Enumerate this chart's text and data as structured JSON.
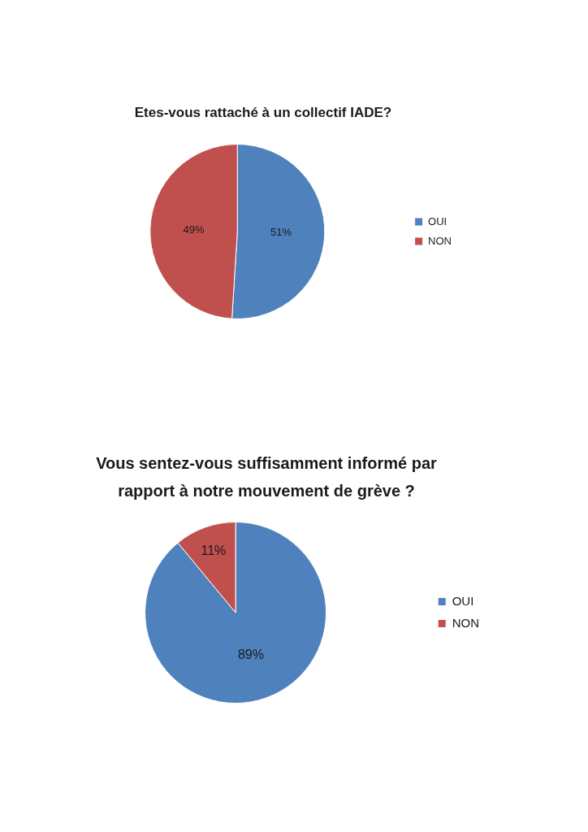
{
  "chart_data": [
    {
      "type": "pie",
      "title": "Etes-vous rattaché à un collectif IADE?",
      "categories": [
        "OUI",
        "NON"
      ],
      "values": [
        51,
        49
      ],
      "colors": [
        "#4f81bd",
        "#c0504d"
      ],
      "value_labels": [
        "51%",
        "49%"
      ],
      "legend": "right"
    },
    {
      "type": "pie",
      "title": "Vous sentez-vous suffisamment informé par rapport à notre mouvement de grève ?",
      "categories": [
        "OUI",
        "NON"
      ],
      "values": [
        89,
        11
      ],
      "colors": [
        "#4f81bd",
        "#c0504d"
      ],
      "value_labels": [
        "89%",
        "11%"
      ],
      "legend": "right"
    }
  ]
}
